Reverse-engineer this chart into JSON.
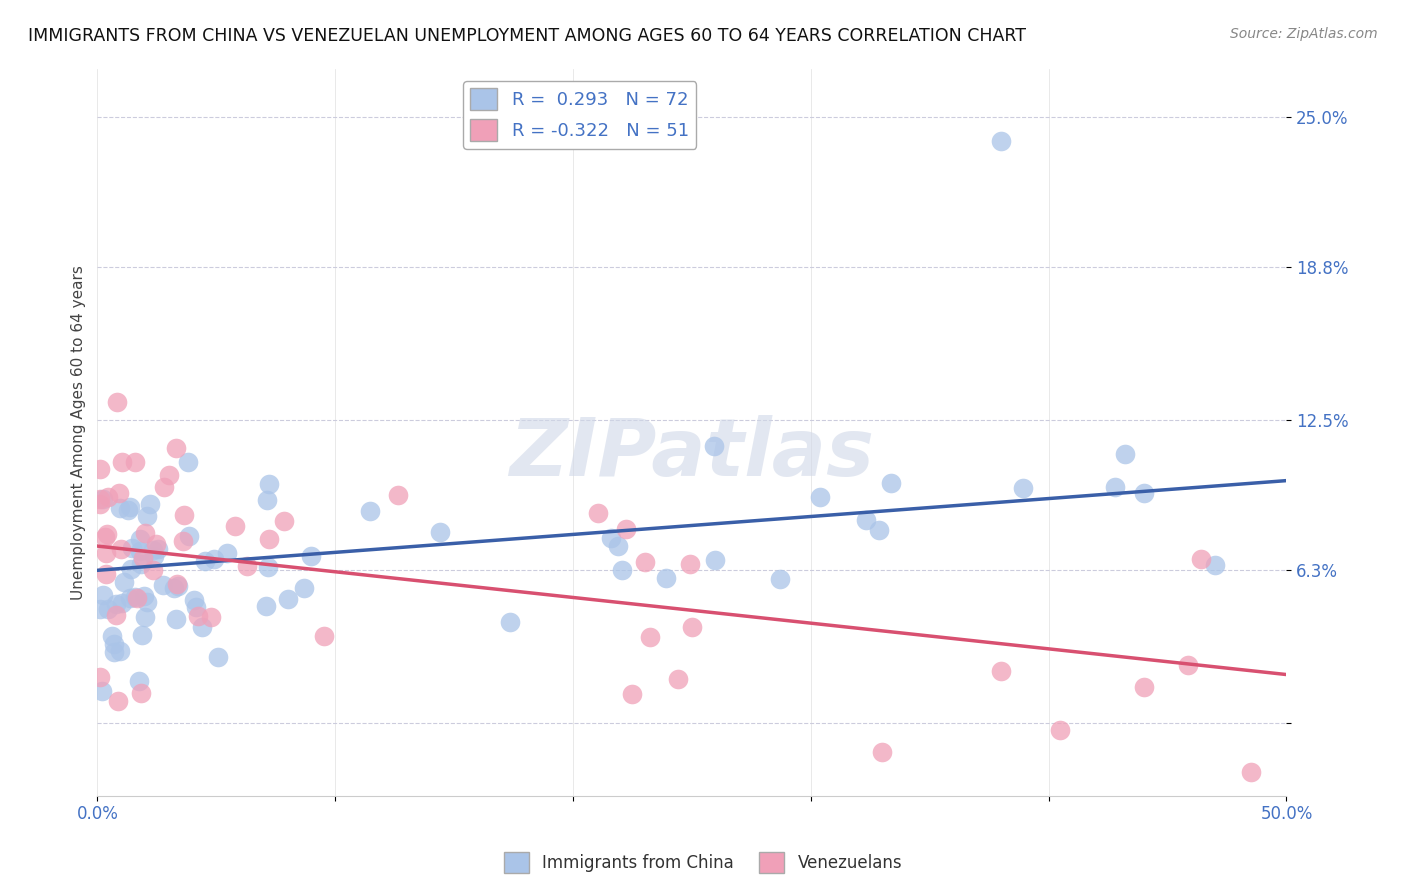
{
  "title": "IMMIGRANTS FROM CHINA VS VENEZUELAN UNEMPLOYMENT AMONG AGES 60 TO 64 YEARS CORRELATION CHART",
  "source": "Source: ZipAtlas.com",
  "ylabel": "Unemployment Among Ages 60 to 64 years",
  "xlim": [
    0.0,
    0.5
  ],
  "ylim": [
    -0.03,
    0.27
  ],
  "yticks": [
    0.0,
    0.063,
    0.125,
    0.188,
    0.25
  ],
  "ytick_labels": [
    "",
    "6.3%",
    "12.5%",
    "18.8%",
    "25.0%"
  ],
  "xticks": [
    0.0,
    0.1,
    0.2,
    0.3,
    0.4,
    0.5
  ],
  "xtick_labels": [
    "0.0%",
    "",
    "",
    "",
    "",
    "50.0%"
  ],
  "china_color": "#aac4e8",
  "china_line_color": "#3a5fa8",
  "ven_color": "#f0a0b8",
  "ven_line_color": "#d85070",
  "china_name": "Immigrants from China",
  "ven_name": "Venezuelans",
  "china_R": 0.293,
  "china_N": 72,
  "ven_R": -0.322,
  "ven_N": 51,
  "watermark": "ZIPatlas",
  "background_color": "#ffffff",
  "grid_color": "#ccccdd",
  "title_fontsize": 12.5,
  "axis_label_fontsize": 11,
  "tick_fontsize": 12,
  "legend_fontsize": 13
}
